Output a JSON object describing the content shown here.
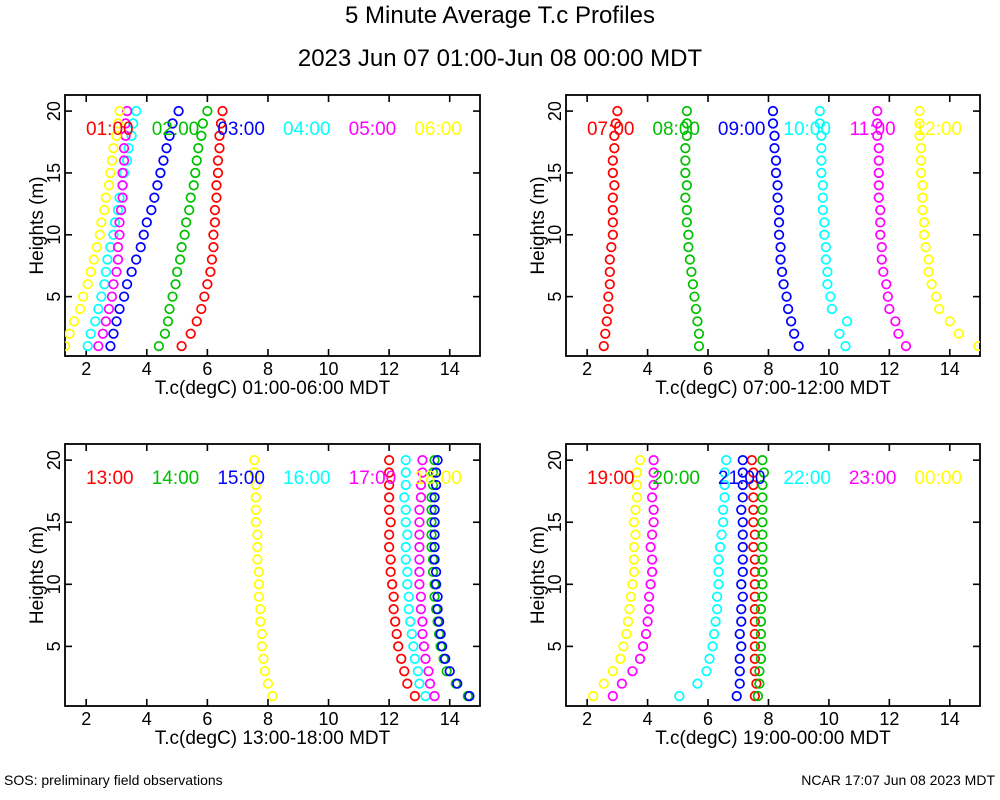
{
  "title": "5 Minute Average T.c Profiles",
  "subtitle": "2023 Jun 07 01:00-Jun 08 00:00 MDT",
  "footer": {
    "left": "SOS: preliminary field observations",
    "right": "NCAR 17:07 Jun 08 2023 MDT"
  },
  "palette": {
    "red": "#ff0000",
    "green": "#00c000",
    "blue": "#0000ff",
    "cyan": "#00ffff",
    "magenta": "#ff00ff",
    "yellow": "#ffff00",
    "axis": "#000000"
  },
  "chart_data": [
    {
      "type": "scatter",
      "xlabel": "T.c(degC) 01:00-06:00 MDT",
      "ylabel": "Heights (m)",
      "xlim": [
        1.3,
        15.0
      ],
      "ylim": [
        0.2,
        21.3
      ],
      "xticks": [
        2,
        4,
        6,
        8,
        10,
        12,
        14
      ],
      "yticks": [
        5,
        10,
        15,
        20
      ],
      "marker": "open-circle",
      "heights_m": [
        1,
        2,
        3,
        4,
        5,
        6,
        7,
        8,
        9,
        10,
        11,
        12,
        13,
        14,
        15,
        16,
        17,
        18,
        19,
        20
      ],
      "series": [
        {
          "name": "01:00",
          "color": "#ff0000",
          "values": [
            5.15,
            5.45,
            5.65,
            5.8,
            5.9,
            6.0,
            6.1,
            6.15,
            6.2,
            6.2,
            6.25,
            6.25,
            6.3,
            6.3,
            6.35,
            6.35,
            6.4,
            6.4,
            6.45,
            6.5
          ]
        },
        {
          "name": "02:00",
          "color": "#00c000",
          "values": [
            4.4,
            4.6,
            4.7,
            4.75,
            4.85,
            4.95,
            5.0,
            5.1,
            5.15,
            5.25,
            5.3,
            5.4,
            5.45,
            5.55,
            5.6,
            5.65,
            5.7,
            5.8,
            5.85,
            6.0
          ]
        },
        {
          "name": "03:00",
          "color": "#0000ff",
          "values": [
            2.8,
            2.9,
            3.0,
            3.1,
            3.25,
            3.35,
            3.5,
            3.65,
            3.8,
            3.9,
            4.0,
            4.15,
            4.25,
            4.35,
            4.45,
            4.55,
            4.65,
            4.75,
            4.85,
            5.05
          ]
        },
        {
          "name": "04:00",
          "color": "#00ffff",
          "values": [
            2.05,
            2.15,
            2.3,
            2.4,
            2.5,
            2.6,
            2.65,
            2.7,
            2.8,
            2.9,
            2.95,
            3.05,
            3.1,
            3.2,
            3.25,
            3.35,
            3.4,
            3.5,
            3.55,
            3.65
          ]
        },
        {
          "name": "05:00",
          "color": "#ff00ff",
          "values": [
            2.4,
            2.55,
            2.65,
            2.75,
            2.85,
            2.9,
            3.0,
            3.05,
            3.05,
            3.1,
            3.1,
            3.15,
            3.2,
            3.2,
            3.2,
            3.25,
            3.25,
            3.3,
            3.3,
            3.35
          ]
        },
        {
          "name": "06:00",
          "color": "#ffff00",
          "values": [
            1.3,
            1.45,
            1.6,
            1.8,
            1.9,
            2.05,
            2.15,
            2.25,
            2.35,
            2.45,
            2.5,
            2.6,
            2.65,
            2.75,
            2.8,
            2.85,
            2.9,
            3.0,
            3.05,
            3.1
          ]
        }
      ]
    },
    {
      "type": "scatter",
      "xlabel": "T.c(degC) 07:00-12:00 MDT",
      "ylabel": "Heights (m)",
      "xlim": [
        1.3,
        15.0
      ],
      "ylim": [
        0.2,
        21.3
      ],
      "xticks": [
        2,
        4,
        6,
        8,
        10,
        12,
        14
      ],
      "yticks": [
        5,
        10,
        15,
        20
      ],
      "marker": "open-circle",
      "heights_m": [
        1,
        2,
        3,
        4,
        5,
        6,
        7,
        8,
        9,
        10,
        11,
        12,
        13,
        14,
        15,
        16,
        17,
        18,
        19,
        20
      ],
      "series": [
        {
          "name": "07:00",
          "color": "#ff0000",
          "values": [
            2.55,
            2.6,
            2.65,
            2.7,
            2.7,
            2.75,
            2.75,
            2.75,
            2.8,
            2.85,
            2.85,
            2.85,
            2.85,
            2.9,
            2.85,
            2.85,
            2.9,
            2.9,
            2.95,
            3.0
          ]
        },
        {
          "name": "08:00",
          "color": "#00c000",
          "values": [
            5.7,
            5.7,
            5.65,
            5.6,
            5.55,
            5.5,
            5.45,
            5.4,
            5.35,
            5.35,
            5.3,
            5.3,
            5.25,
            5.3,
            5.25,
            5.25,
            5.25,
            5.3,
            5.3,
            5.3
          ]
        },
        {
          "name": "09:00",
          "color": "#0000ff",
          "values": [
            9.0,
            8.85,
            8.75,
            8.65,
            8.6,
            8.5,
            8.45,
            8.4,
            8.4,
            8.35,
            8.35,
            8.35,
            8.3,
            8.3,
            8.25,
            8.25,
            8.2,
            8.2,
            8.15,
            8.15
          ]
        },
        {
          "name": "10:00",
          "color": "#00ffff",
          "values": [
            10.55,
            10.35,
            10.6,
            10.1,
            10.05,
            9.95,
            9.95,
            9.9,
            9.9,
            9.85,
            9.85,
            9.8,
            9.8,
            9.8,
            9.75,
            9.75,
            9.75,
            9.75,
            9.7,
            9.7
          ]
        },
        {
          "name": "11:00",
          "color": "#ff00ff",
          "values": [
            12.55,
            12.3,
            12.2,
            12.0,
            11.95,
            11.9,
            11.8,
            11.75,
            11.75,
            11.7,
            11.7,
            11.7,
            11.65,
            11.65,
            11.65,
            11.65,
            11.65,
            11.6,
            11.6,
            11.6
          ]
        },
        {
          "name": "12:00",
          "color": "#ffff00",
          "values": [
            14.95,
            14.3,
            14.0,
            13.65,
            13.55,
            13.4,
            13.3,
            13.3,
            13.2,
            13.15,
            13.15,
            13.1,
            13.1,
            13.1,
            13.05,
            13.05,
            13.05,
            13.0,
            13.0,
            13.0
          ]
        }
      ]
    },
    {
      "type": "scatter",
      "xlabel": "T.c(degC) 13:00-18:00 MDT",
      "ylabel": "Heights (m)",
      "xlim": [
        1.3,
        15.0
      ],
      "ylim": [
        0.2,
        21.3
      ],
      "xticks": [
        2,
        4,
        6,
        8,
        10,
        12,
        14
      ],
      "yticks": [
        5,
        10,
        15,
        20
      ],
      "marker": "open-circle",
      "heights_m": [
        1,
        2,
        3,
        4,
        5,
        6,
        7,
        8,
        9,
        10,
        11,
        12,
        13,
        14,
        15,
        16,
        17,
        18,
        19,
        20
      ],
      "series": [
        {
          "name": "13:00",
          "color": "#ff0000",
          "values": [
            12.85,
            12.6,
            12.5,
            12.4,
            12.3,
            12.25,
            12.2,
            12.15,
            12.15,
            12.1,
            12.05,
            12.05,
            12.0,
            12.0,
            12.05,
            12.0,
            12.0,
            12.0,
            12.0,
            12.0
          ]
        },
        {
          "name": "14:00",
          "color": "#00c000",
          "values": [
            14.6,
            14.2,
            13.9,
            13.8,
            13.7,
            13.65,
            13.6,
            13.55,
            13.5,
            13.5,
            13.45,
            13.45,
            13.4,
            13.4,
            13.4,
            13.4,
            13.4,
            13.45,
            13.45,
            13.5
          ]
        },
        {
          "name": "15:00",
          "color": "#0000ff",
          "values": [
            14.65,
            14.25,
            14.0,
            13.85,
            13.75,
            13.7,
            13.65,
            13.6,
            13.6,
            13.55,
            13.55,
            13.5,
            13.5,
            13.5,
            13.5,
            13.5,
            13.5,
            13.55,
            13.55,
            13.6
          ]
        },
        {
          "name": "16:00",
          "color": "#00ffff",
          "values": [
            13.2,
            13.0,
            12.95,
            12.85,
            12.8,
            12.75,
            12.7,
            12.65,
            12.65,
            12.6,
            12.6,
            12.55,
            12.55,
            12.6,
            12.55,
            12.55,
            12.5,
            12.55,
            12.55,
            12.55
          ]
        },
        {
          "name": "17:00",
          "color": "#ff00ff",
          "values": [
            13.5,
            13.35,
            13.3,
            13.2,
            13.15,
            13.1,
            13.1,
            13.05,
            13.05,
            13.0,
            13.0,
            13.0,
            13.0,
            13.0,
            13.0,
            13.0,
            13.05,
            13.05,
            13.1,
            13.1
          ]
        },
        {
          "name": "18:00",
          "color": "#ffff00",
          "values": [
            8.15,
            8.0,
            7.9,
            7.85,
            7.8,
            7.8,
            7.75,
            7.75,
            7.7,
            7.7,
            7.7,
            7.65,
            7.65,
            7.65,
            7.6,
            7.6,
            7.6,
            7.6,
            7.55,
            7.55
          ]
        }
      ]
    },
    {
      "type": "scatter",
      "xlabel": "T.c(degC) 19:00-00:00 MDT",
      "ylabel": "Heights (m)",
      "xlim": [
        1.3,
        15.0
      ],
      "ylim": [
        0.2,
        21.3
      ],
      "xticks": [
        2,
        4,
        6,
        8,
        10,
        12,
        14
      ],
      "yticks": [
        5,
        10,
        15,
        20
      ],
      "marker": "open-circle",
      "heights_m": [
        1,
        2,
        3,
        4,
        5,
        6,
        7,
        8,
        9,
        10,
        11,
        12,
        13,
        14,
        15,
        16,
        17,
        18,
        19,
        20
      ],
      "series": [
        {
          "name": "19:00",
          "color": "#ff0000",
          "values": [
            7.55,
            7.6,
            7.55,
            7.55,
            7.55,
            7.55,
            7.55,
            7.55,
            7.55,
            7.55,
            7.55,
            7.55,
            7.5,
            7.55,
            7.5,
            7.5,
            7.5,
            7.5,
            7.5,
            7.45
          ]
        },
        {
          "name": "20:00",
          "color": "#00c000",
          "values": [
            7.65,
            7.7,
            7.7,
            7.75,
            7.75,
            7.75,
            7.75,
            7.75,
            7.8,
            7.8,
            7.8,
            7.8,
            7.8,
            7.8,
            7.8,
            7.8,
            7.8,
            7.8,
            7.85,
            7.8
          ]
        },
        {
          "name": "21:00",
          "color": "#0000ff",
          "values": [
            6.95,
            7.05,
            7.05,
            7.05,
            7.1,
            7.05,
            7.1,
            7.1,
            7.15,
            7.1,
            7.15,
            7.15,
            7.15,
            7.15,
            7.15,
            7.1,
            7.15,
            7.15,
            7.15,
            7.15
          ]
        },
        {
          "name": "22:00",
          "color": "#00ffff",
          "values": [
            5.05,
            5.65,
            5.95,
            6.05,
            6.15,
            6.2,
            6.25,
            6.3,
            6.3,
            6.35,
            6.35,
            6.35,
            6.4,
            6.45,
            6.5,
            6.5,
            6.55,
            6.55,
            6.55,
            6.6
          ]
        },
        {
          "name": "23:00",
          "color": "#ff00ff",
          "values": [
            2.85,
            3.15,
            3.5,
            3.75,
            3.85,
            3.95,
            4.0,
            4.05,
            4.05,
            4.1,
            4.15,
            4.15,
            4.1,
            4.15,
            4.2,
            4.2,
            4.15,
            4.2,
            4.2,
            4.2
          ]
        },
        {
          "name": "00:00",
          "color": "#ffff00",
          "values": [
            2.2,
            2.55,
            2.85,
            3.1,
            3.2,
            3.3,
            3.35,
            3.4,
            3.45,
            3.5,
            3.55,
            3.55,
            3.55,
            3.6,
            3.55,
            3.6,
            3.65,
            3.65,
            3.65,
            3.75
          ]
        }
      ]
    }
  ]
}
